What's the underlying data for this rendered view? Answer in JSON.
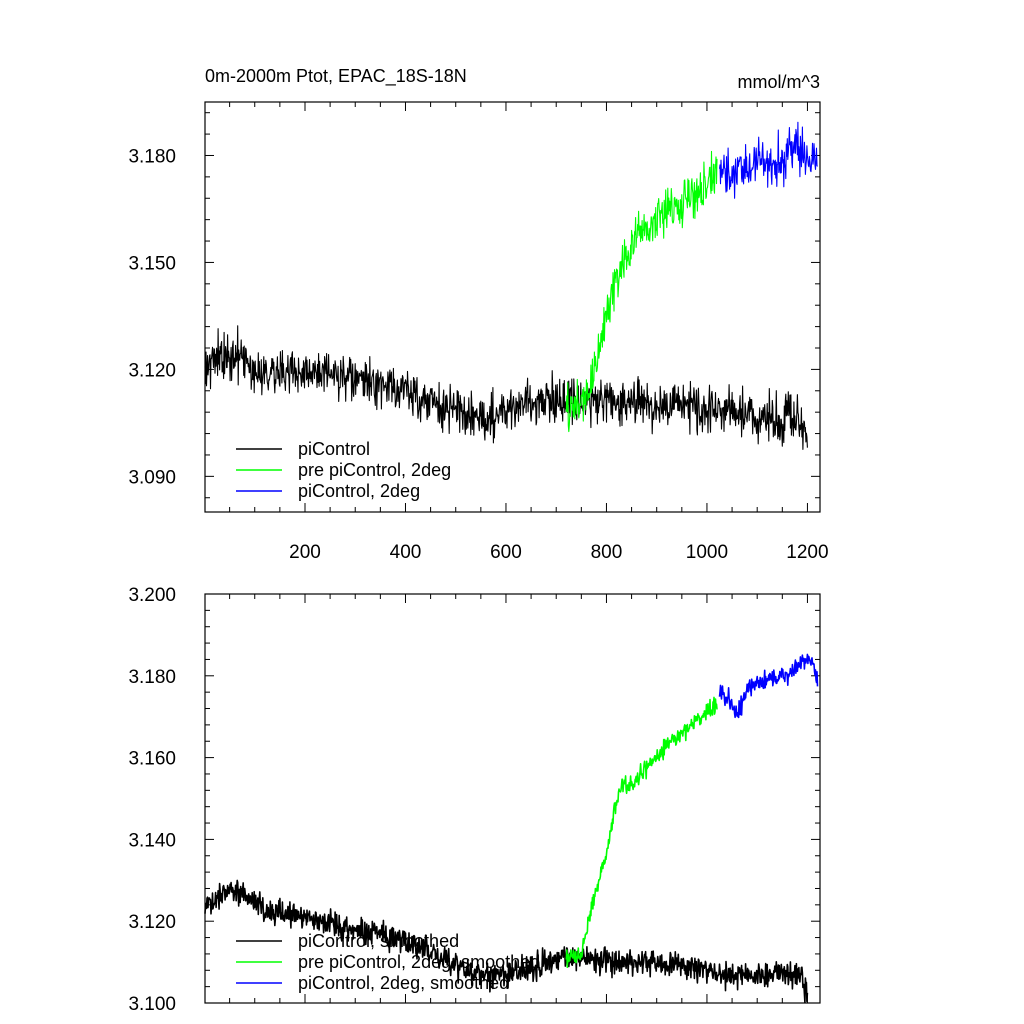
{
  "figure": {
    "title_left": "0m-2000m Ptot, EPAC_18S-18N",
    "title_right": "mmol/m^3"
  },
  "chart_data": [
    {
      "type": "line",
      "title": "0m-2000m Ptot, EPAC_18S-18N",
      "units": "mmol/m^3",
      "xlim": [
        1,
        1225
      ],
      "ylim": [
        3.08,
        3.195
      ],
      "xticks": [
        200,
        400,
        600,
        800,
        1000,
        1200
      ],
      "xtick_labels": [
        "200",
        "400",
        "600",
        "800",
        "1000",
        "1200"
      ],
      "yticks": [
        3.09,
        3.12,
        3.15,
        3.18
      ],
      "ytick_labels": [
        "3.090",
        "3.120",
        "3.150",
        "3.180"
      ],
      "grid": false,
      "legend_position": "bottom-left",
      "series": [
        {
          "name": "piControl",
          "color": "#000000",
          "noise": 0.0045,
          "points": [
            [
              1,
              3.122
            ],
            [
              60,
              3.124
            ],
            [
              100,
              3.12
            ],
            [
              200,
              3.119
            ],
            [
              300,
              3.117
            ],
            [
              400,
              3.114
            ],
            [
              480,
              3.109
            ],
            [
              560,
              3.106
            ],
            [
              620,
              3.11
            ],
            [
              700,
              3.112
            ],
            [
              800,
              3.111
            ],
            [
              900,
              3.11
            ],
            [
              1000,
              3.109
            ],
            [
              1100,
              3.107
            ],
            [
              1180,
              3.106
            ],
            [
              1200,
              3.1
            ]
          ]
        },
        {
          "name": "pre piControl, 2deg",
          "color": "#00ff00",
          "noise": 0.0045,
          "points": [
            [
              720,
              3.108
            ],
            [
              760,
              3.112
            ],
            [
              780,
              3.122
            ],
            [
              800,
              3.135
            ],
            [
              820,
              3.146
            ],
            [
              840,
              3.152
            ],
            [
              860,
              3.157
            ],
            [
              900,
              3.162
            ],
            [
              940,
              3.166
            ],
            [
              980,
              3.17
            ],
            [
              1020,
              3.174
            ]
          ]
        },
        {
          "name": "piControl, 2deg",
          "color": "#0000ff",
          "noise": 0.0045,
          "points": [
            [
              1025,
              3.175
            ],
            [
              1060,
              3.174
            ],
            [
              1100,
              3.178
            ],
            [
              1150,
              3.179
            ],
            [
              1180,
              3.182
            ],
            [
              1200,
              3.18
            ],
            [
              1220,
              3.179
            ]
          ]
        }
      ]
    },
    {
      "type": "line",
      "title": "",
      "xlim": [
        1,
        1225
      ],
      "ylim": [
        3.1,
        3.2
      ],
      "xticks": [
        200,
        400,
        600,
        800,
        1000,
        1200
      ],
      "xtick_labels": [],
      "yticks": [
        3.1,
        3.12,
        3.14,
        3.16,
        3.18,
        3.2
      ],
      "ytick_labels": [
        "3.100",
        "3.120",
        "3.140",
        "3.160",
        "3.180",
        "3.200"
      ],
      "grid": false,
      "legend_position": "bottom-left",
      "series": [
        {
          "name": "piControl, smoothed",
          "color": "#000000",
          "noise": 0.0022,
          "points": [
            [
              1,
              3.123
            ],
            [
              40,
              3.128
            ],
            [
              80,
              3.127
            ],
            [
              120,
              3.123
            ],
            [
              200,
              3.121
            ],
            [
              300,
              3.118
            ],
            [
              380,
              3.116
            ],
            [
              460,
              3.112
            ],
            [
              560,
              3.106
            ],
            [
              650,
              3.109
            ],
            [
              700,
              3.111
            ],
            [
              760,
              3.111
            ],
            [
              850,
              3.11
            ],
            [
              950,
              3.109
            ],
            [
              1050,
              3.107
            ],
            [
              1150,
              3.107
            ],
            [
              1190,
              3.106
            ],
            [
              1200,
              3.101
            ]
          ]
        },
        {
          "name": "pre piControl, 2deg, smoothed",
          "color": "#00ff00",
          "noise": 0.0015,
          "points": [
            [
              720,
              3.111
            ],
            [
              750,
              3.112
            ],
            [
              765,
              3.12
            ],
            [
              780,
              3.128
            ],
            [
              800,
              3.137
            ],
            [
              815,
              3.147
            ],
            [
              830,
              3.153
            ],
            [
              850,
              3.153
            ],
            [
              880,
              3.158
            ],
            [
              920,
              3.163
            ],
            [
              960,
              3.167
            ],
            [
              1000,
              3.171
            ],
            [
              1020,
              3.173
            ]
          ]
        },
        {
          "name": "piControl, 2deg, smoothed",
          "color": "#0000ff",
          "noise": 0.0015,
          "points": [
            [
              1025,
              3.177
            ],
            [
              1045,
              3.174
            ],
            [
              1060,
              3.17
            ],
            [
              1080,
              3.177
            ],
            [
              1120,
              3.179
            ],
            [
              1160,
              3.18
            ],
            [
              1190,
              3.183
            ],
            [
              1205,
              3.184
            ],
            [
              1220,
              3.179
            ]
          ]
        }
      ]
    }
  ]
}
